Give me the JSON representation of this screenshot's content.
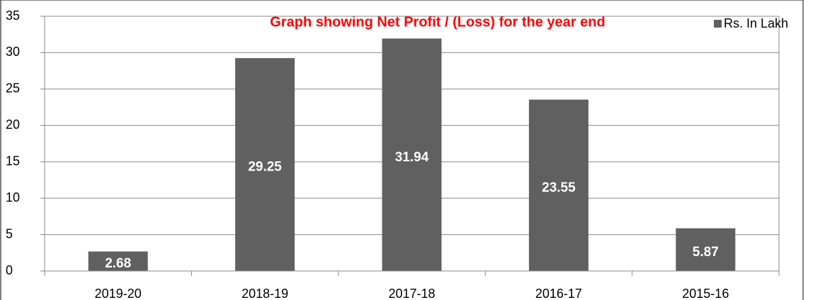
{
  "chart_data": {
    "type": "bar",
    "title": "Graph showing Net Profit / (Loss) for the year end",
    "categories": [
      "2019-20",
      "2018-19",
      "2017-18",
      "2016-17",
      "2015-16"
    ],
    "series": [
      {
        "name": "Rs. In Lakh",
        "color": "#606060",
        "values": [
          2.68,
          29.25,
          31.94,
          23.55,
          5.87
        ]
      }
    ],
    "ylim": [
      0,
      35
    ],
    "yticks": [
      0,
      5,
      10,
      15,
      20,
      25,
      30,
      35
    ],
    "grid": true,
    "legend": "top-right"
  }
}
